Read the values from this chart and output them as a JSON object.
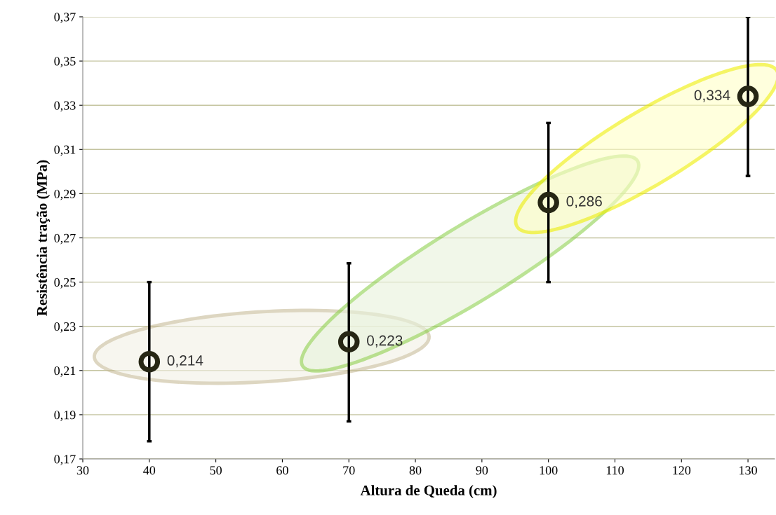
{
  "chart_data": {
    "type": "scatter",
    "xlabel": "Altura de Queda (cm)",
    "ylabel": "Resistência tração (MPa)",
    "x": [
      40,
      70,
      100,
      130
    ],
    "series": [
      {
        "color": "#262614",
        "values": [
          0.214,
          0.223,
          0.286,
          0.334
        ],
        "value_labels": [
          "0,214",
          "0,223",
          "0,286",
          "0,334"
        ],
        "errors": [
          [
            0.178,
            0.25
          ],
          [
            0.187,
            0.2585
          ],
          [
            0.25,
            0.322
          ],
          [
            0.298,
            0.37
          ]
        ]
      }
    ],
    "xlim": [
      30,
      134
    ],
    "xticks": [
      30,
      40,
      50,
      60,
      70,
      80,
      90,
      100,
      110,
      120,
      130
    ],
    "ylim": [
      0.17,
      0.37
    ],
    "yticks": [
      {
        "value": 0.17,
        "label": "0,17"
      },
      {
        "value": 0.19,
        "label": "0,19"
      },
      {
        "value": 0.21,
        "label": "0,21"
      },
      {
        "value": 0.23,
        "label": "0,23"
      },
      {
        "value": 0.25,
        "label": "0,25"
      },
      {
        "value": 0.27,
        "label": "0,27"
      },
      {
        "value": 0.29,
        "label": "0,29"
      },
      {
        "value": 0.31,
        "label": "0,31"
      },
      {
        "value": 0.33,
        "label": "0,33"
      },
      {
        "value": 0.35,
        "label": "0,35"
      },
      {
        "value": 0.37,
        "label": "0,37"
      }
    ],
    "grid": "y",
    "marker": "circle"
  }
}
